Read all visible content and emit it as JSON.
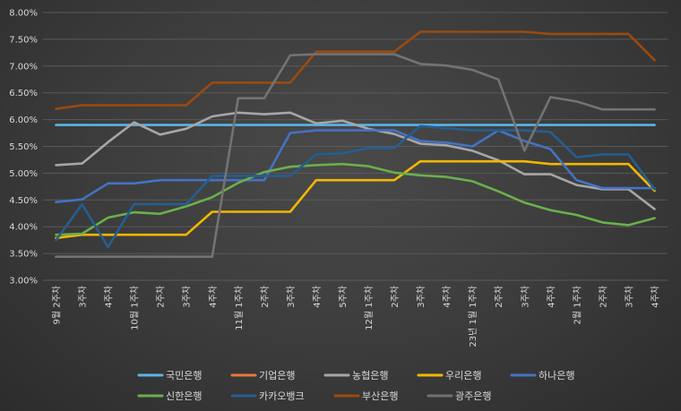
{
  "chart_data": {
    "type": "line",
    "title": "",
    "xlabel": "",
    "ylabel": "",
    "ylim": [
      3.0,
      8.0
    ],
    "y_ticks": [
      "3.00%",
      "3.50%",
      "4.00%",
      "4.50%",
      "5.00%",
      "5.50%",
      "6.00%",
      "6.50%",
      "7.00%",
      "7.50%",
      "8.00%"
    ],
    "grid": true,
    "legend_position": "bottom",
    "categories": [
      "9월 2주차",
      "3주차",
      "4주차",
      "10월 1주차",
      "2주차",
      "3주차",
      "4주차",
      "11월 1주차",
      "2주차",
      "3주차",
      "4주차",
      "5주차",
      "12월 1주차",
      "2주차",
      "3주차",
      "4주차",
      "23년 1월 1주차",
      "2주차",
      "3주차",
      "4주차",
      "2월 1주차",
      "2주차",
      "3주차",
      "4주차"
    ],
    "series": [
      {
        "name": "국민은행",
        "color": "#5ab4e8",
        "values": [
          5.9,
          5.9,
          5.9,
          5.9,
          5.9,
          5.9,
          5.9,
          5.9,
          5.9,
          5.9,
          5.9,
          5.9,
          5.9,
          5.9,
          5.9,
          5.9,
          5.9,
          5.9,
          5.9,
          5.9,
          5.9,
          5.9,
          5.9,
          5.9
        ]
      },
      {
        "name": "기업은행",
        "color": "#e8783a",
        "values": [
          null,
          null,
          null,
          null,
          null,
          null,
          null,
          null,
          null,
          null,
          null,
          null,
          null,
          null,
          null,
          null,
          null,
          null,
          null,
          null,
          null,
          null,
          null,
          null
        ]
      },
      {
        "name": "농협은행",
        "color": "#a6a6a6",
        "values": [
          5.15,
          5.18,
          5.58,
          5.95,
          5.72,
          5.83,
          6.06,
          6.13,
          6.1,
          6.13,
          5.93,
          5.98,
          5.83,
          5.73,
          5.55,
          5.52,
          5.42,
          5.24,
          4.98,
          4.98,
          4.78,
          4.7,
          4.7,
          4.33
        ]
      },
      {
        "name": "우리은행",
        "color": "#f2b701",
        "values": [
          3.79,
          3.85,
          3.85,
          3.85,
          3.85,
          3.85,
          4.28,
          4.28,
          4.28,
          4.28,
          4.87,
          4.87,
          4.87,
          4.87,
          5.22,
          5.22,
          5.22,
          5.22,
          5.22,
          5.17,
          5.17,
          5.17,
          5.17,
          4.67
        ]
      },
      {
        "name": "하나은행",
        "color": "#4472c4",
        "values": [
          4.46,
          4.51,
          4.81,
          4.81,
          4.87,
          4.87,
          4.87,
          4.87,
          4.87,
          5.75,
          5.8,
          5.8,
          5.8,
          5.8,
          5.6,
          5.57,
          5.5,
          5.8,
          5.6,
          5.45,
          4.87,
          4.72,
          4.72,
          4.72
        ]
      },
      {
        "name": "신한은행",
        "color": "#6ab04c",
        "values": [
          3.85,
          3.87,
          4.17,
          4.27,
          4.24,
          4.38,
          4.55,
          4.82,
          5.02,
          5.12,
          5.15,
          5.17,
          5.13,
          5.01,
          4.96,
          4.93,
          4.85,
          4.66,
          4.45,
          4.31,
          4.22,
          4.08,
          4.03,
          4.16
        ]
      },
      {
        "name": "카카오뱅크",
        "color": "#255e91",
        "values": [
          3.75,
          4.42,
          3.62,
          4.42,
          4.42,
          4.42,
          4.95,
          4.95,
          4.95,
          4.95,
          5.35,
          5.37,
          5.47,
          5.47,
          5.88,
          5.84,
          5.8,
          5.8,
          5.8,
          5.77,
          5.3,
          5.35,
          5.35,
          4.7
        ]
      },
      {
        "name": "부산은행",
        "color": "#9c4a0f",
        "values": [
          6.2,
          6.27,
          6.27,
          6.27,
          6.27,
          6.27,
          6.69,
          6.69,
          6.69,
          6.69,
          7.27,
          7.27,
          7.27,
          7.27,
          7.64,
          7.64,
          7.64,
          7.64,
          7.64,
          7.6,
          7.6,
          7.6,
          7.6,
          7.11
        ]
      },
      {
        "name": "광주은행",
        "color": "#737373",
        "values": [
          3.44,
          3.44,
          3.44,
          3.44,
          3.44,
          3.44,
          3.44,
          6.4,
          6.4,
          7.2,
          7.22,
          7.22,
          7.22,
          7.22,
          7.04,
          7.01,
          6.93,
          6.75,
          5.42,
          6.42,
          6.34,
          6.19,
          6.19,
          6.19
        ]
      }
    ]
  }
}
